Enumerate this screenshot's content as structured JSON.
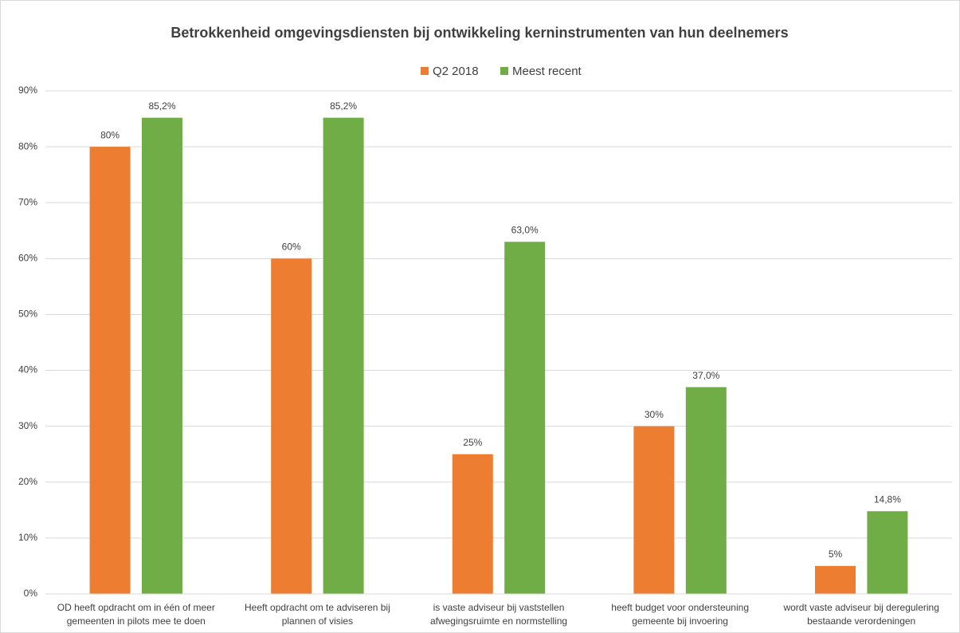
{
  "chart_data": {
    "type": "bar",
    "title": "Betrokkenheid omgevingsdiensten bij ontwikkeling kerninstrumenten van hun deelnemers",
    "categories": [
      "OD heeft opdracht om in één of meer gemeenten in pilots mee te doen",
      "Heeft opdracht om te adviseren bij plannen of visies",
      "is vaste adviseur bij vaststellen afwegingsruimte en normstelling",
      "heeft budget voor ondersteuning gemeente bij invoering",
      "wordt vaste adviseur bij deregulering bestaande verordeningen"
    ],
    "series": [
      {
        "name": "Q2 2018",
        "color": "#ed7d31",
        "values": [
          80,
          60,
          25,
          30,
          5
        ],
        "value_labels": [
          "80%",
          "60%",
          "25%",
          "30%",
          "5%"
        ]
      },
      {
        "name": "Meest recent",
        "color": "#70ad47",
        "values": [
          85.2,
          85.2,
          63.0,
          37.0,
          14.8
        ],
        "value_labels": [
          "85,2%",
          "85,2%",
          "63,0%",
          "37,0%",
          "14,8%"
        ]
      }
    ],
    "ylim": [
      0,
      90
    ],
    "yticks": [
      {
        "value": 0,
        "label": "0%"
      },
      {
        "value": 10,
        "label": "10%"
      },
      {
        "value": 20,
        "label": "20%"
      },
      {
        "value": 30,
        "label": "30%"
      },
      {
        "value": 40,
        "label": "40%"
      },
      {
        "value": 50,
        "label": "50%"
      },
      {
        "value": 60,
        "label": "60%"
      },
      {
        "value": 70,
        "label": "70%"
      },
      {
        "value": 80,
        "label": "80%"
      },
      {
        "value": 90,
        "label": "90%"
      }
    ],
    "grid": true,
    "legend": "top"
  }
}
